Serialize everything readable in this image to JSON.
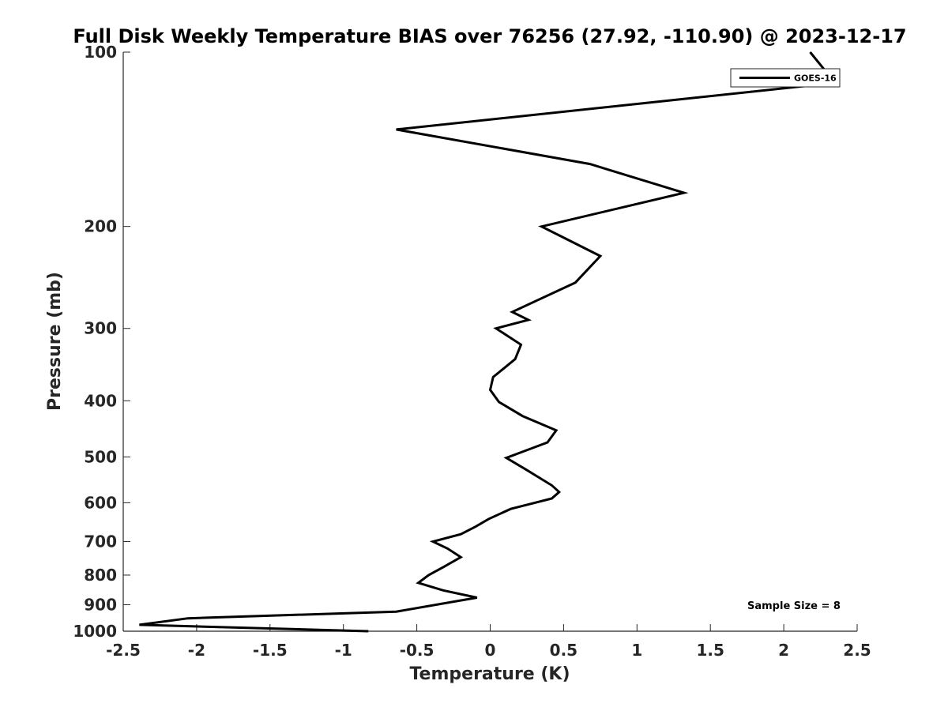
{
  "chart_data": {
    "type": "line",
    "title": "Full Disk Weekly Temperature BIAS over 76256 (27.92, -110.90) @ 2023-12-17",
    "xlabel": "Temperature (K)",
    "ylabel": "Pressure (mb)",
    "xlim": [
      -2.5,
      2.5
    ],
    "ylim": [
      100,
      1000
    ],
    "y_scale": "log",
    "y_reversed": true,
    "x_ticks": [
      "-2.5",
      "-2",
      "-1.5",
      "-1",
      "-0.5",
      "0",
      "0.5",
      "1",
      "1.5",
      "2",
      "2.5"
    ],
    "x_tick_values": [
      -2.5,
      -2,
      -1.5,
      -1,
      -0.5,
      0,
      0.5,
      1,
      1.5,
      2,
      2.5
    ],
    "y_ticks": [
      "100",
      "200",
      "300",
      "400",
      "500",
      "600",
      "700",
      "800",
      "900",
      "1000"
    ],
    "y_tick_values": [
      100,
      200,
      300,
      400,
      500,
      600,
      700,
      800,
      900,
      1000
    ],
    "grid": false,
    "legend_position": "top-right",
    "annotation": "Sample Size = 8",
    "series": [
      {
        "name": "GOES-16",
        "color": "#000000",
        "points": [
          [
            2.18,
            100
          ],
          [
            2.35,
            113
          ],
          [
            -0.64,
            136
          ],
          [
            0.68,
            156
          ],
          [
            1.32,
            175
          ],
          [
            0.35,
            200
          ],
          [
            0.75,
            225
          ],
          [
            0.58,
            250
          ],
          [
            0.15,
            281
          ],
          [
            0.26,
            290
          ],
          [
            0.04,
            300
          ],
          [
            0.21,
            320
          ],
          [
            0.17,
            339
          ],
          [
            0.02,
            364
          ],
          [
            0.0,
            383
          ],
          [
            0.06,
            402
          ],
          [
            0.22,
            425
          ],
          [
            0.45,
            450
          ],
          [
            0.39,
            472
          ],
          [
            0.22,
            490
          ],
          [
            0.11,
            502
          ],
          [
            0.24,
            525
          ],
          [
            0.42,
            560
          ],
          [
            0.47,
            575
          ],
          [
            0.42,
            590
          ],
          [
            0.14,
            615
          ],
          [
            -0.01,
            640
          ],
          [
            -0.1,
            660
          ],
          [
            -0.2,
            680
          ],
          [
            -0.39,
            700
          ],
          [
            -0.29,
            720
          ],
          [
            -0.2,
            745
          ],
          [
            -0.32,
            775
          ],
          [
            -0.42,
            800
          ],
          [
            -0.49,
            825
          ],
          [
            -0.32,
            850
          ],
          [
            -0.09,
            875
          ],
          [
            -0.64,
            925
          ],
          [
            -2.06,
            950
          ],
          [
            -2.39,
            975
          ],
          [
            -0.83,
            1000
          ]
        ]
      }
    ]
  }
}
